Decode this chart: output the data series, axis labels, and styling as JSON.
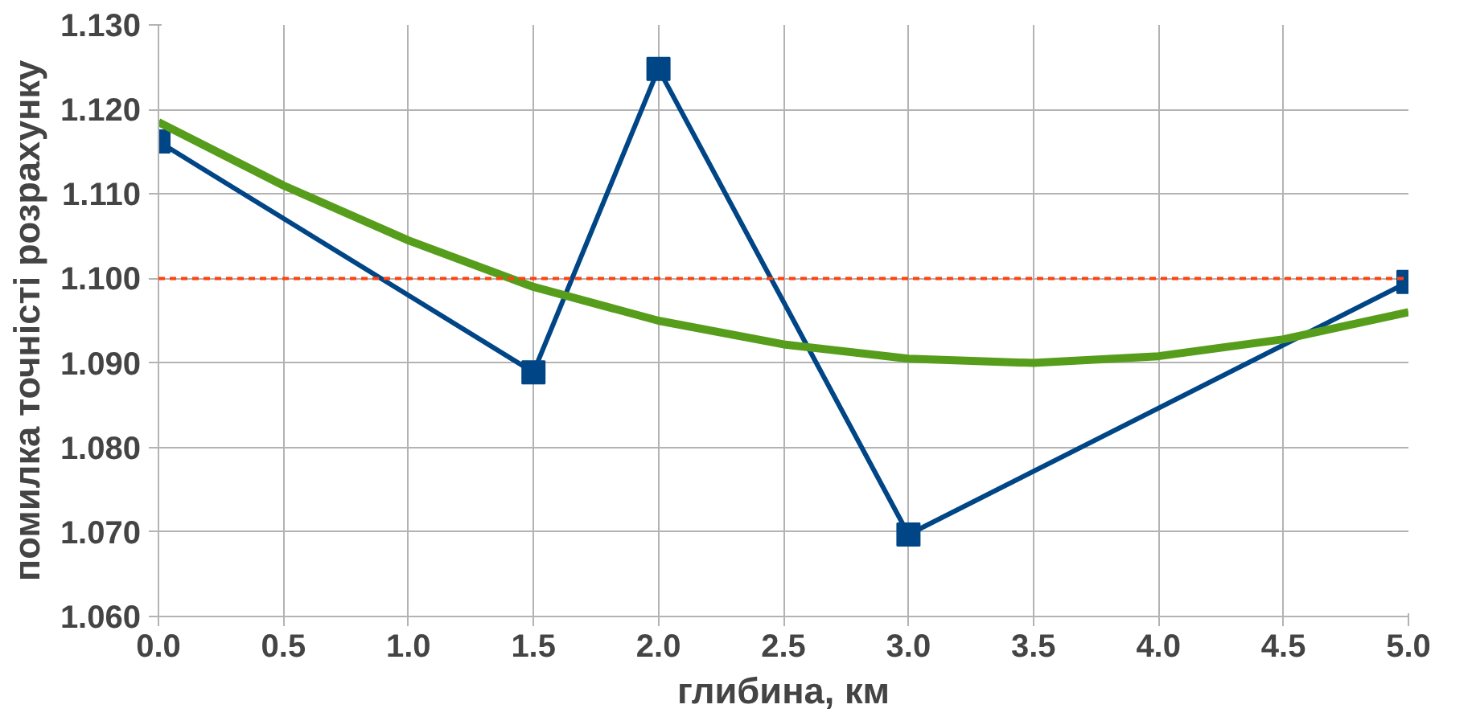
{
  "chart_data": {
    "type": "line",
    "xlabel": "глибина, км",
    "ylabel": "помилка точністі розрахунку",
    "xlim": [
      0,
      5
    ],
    "ylim": [
      1.06,
      1.13
    ],
    "xticks": [
      {
        "value": 0,
        "label": "0.0"
      },
      {
        "value": 0.5,
        "label": "0.5"
      },
      {
        "value": 1,
        "label": "1.0"
      },
      {
        "value": 1.5,
        "label": "1.5"
      },
      {
        "value": 2,
        "label": "2.0"
      },
      {
        "value": 2.5,
        "label": "2.5"
      },
      {
        "value": 3,
        "label": "3.0"
      },
      {
        "value": 3.5,
        "label": "3.5"
      },
      {
        "value": 4,
        "label": "4.0"
      },
      {
        "value": 4.5,
        "label": "4.5"
      },
      {
        "value": 5,
        "label": "5.0"
      }
    ],
    "yticks": [
      {
        "value": 1.06,
        "label": "1.060"
      },
      {
        "value": 1.07,
        "label": "1.070"
      },
      {
        "value": 1.08,
        "label": "1.080"
      },
      {
        "value": 1.09,
        "label": "1.090"
      },
      {
        "value": 1.1,
        "label": "1.100"
      },
      {
        "value": 1.11,
        "label": "1.110"
      },
      {
        "value": 1.12,
        "label": "1.120"
      },
      {
        "value": 1.13,
        "label": "1.130"
      }
    ],
    "grid": true,
    "series": [
      {
        "color": "#004586",
        "marker": "square",
        "x": [
          0,
          1.5,
          2,
          3,
          5
        ],
        "values": [
          1.1162,
          1.0889,
          1.1248,
          1.0697,
          1.0996
        ]
      },
      {
        "type": "line",
        "color": "#579d1c",
        "marker": "none",
        "x": [
          0,
          0.5,
          1,
          1.5,
          2,
          2.5,
          3,
          3.5,
          4,
          4.5,
          5
        ],
        "values": [
          1.1185,
          1.111,
          1.1045,
          1.099,
          1.095,
          1.0922,
          1.0905,
          1.09,
          1.0908,
          1.0928,
          1.096
        ]
      }
    ],
    "ref_lines": [
      {
        "axis": "y",
        "value": 1.1,
        "color": "#ff420e",
        "line_style": "dashed"
      }
    ]
  }
}
